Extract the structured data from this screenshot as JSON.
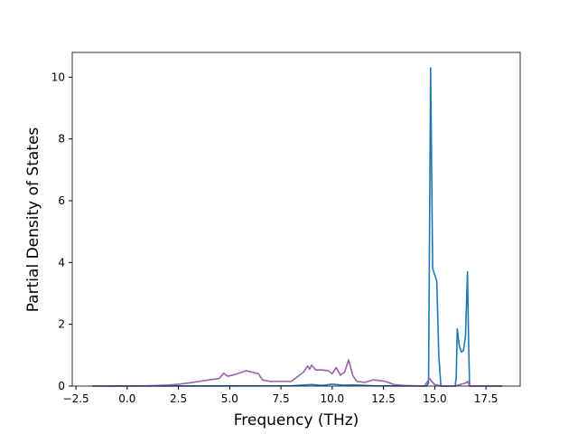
{
  "chart_data": {
    "type": "line",
    "xlabel": "Frequency (THz)",
    "ylabel": "Partial Density of States",
    "xlim": [
      -2.68,
      19.17
    ],
    "ylim": [
      0,
      10.8
    ],
    "xticks": [
      {
        "value": -2.5,
        "label": "−2.5"
      },
      {
        "value": 0,
        "label": "0.0"
      },
      2.5,
      {
        "value": 5,
        "label": "5.0"
      },
      7.5,
      {
        "value": 10,
        "label": "10.0"
      },
      12.5,
      {
        "value": 15,
        "label": "15.0"
      },
      17.5
    ],
    "yticks": [
      0,
      2,
      4,
      6,
      8,
      10
    ],
    "series": [
      {
        "color": "#1f77b4",
        "x": [
          -1.7,
          8,
          9,
          9.5,
          10,
          10.5,
          11,
          12,
          14.6,
          14.7,
          14.8,
          14.9,
          15.0,
          15.1,
          15.2,
          15.3,
          15.31,
          16.0,
          16.05,
          16.1,
          16.2,
          16.3,
          16.4,
          16.5,
          16.6,
          16.65,
          16.7,
          18.3
        ],
        "values": [
          0,
          0.01,
          0.05,
          0.02,
          0.06,
          0.03,
          0.04,
          0.01,
          0,
          0.1,
          10.3,
          3.8,
          3.6,
          3.4,
          1.0,
          0,
          0,
          0,
          0.3,
          1.85,
          1.3,
          1.1,
          1.15,
          1.6,
          3.7,
          1.5,
          0,
          0
        ]
      },
      {
        "color": "#9c5fb0",
        "x": [
          -1.7,
          0,
          1,
          2,
          2.5,
          3,
          3.5,
          4,
          4.5,
          4.7,
          4.9,
          5.1,
          5.3,
          5.6,
          5.8,
          6.1,
          6.4,
          6.6,
          7,
          7.5,
          8,
          8.3,
          8.6,
          8.8,
          8.9,
          9.0,
          9.2,
          9.5,
          9.8,
          10.0,
          10.2,
          10.4,
          10.6,
          10.8,
          11.0,
          11.2,
          11.6,
          12.0,
          12.3,
          12.6,
          13.0,
          13.5,
          14.5,
          14.75,
          14.85,
          15.0,
          15.3,
          16.0,
          16.5,
          16.6,
          16.7,
          17.0,
          18.3
        ],
        "values": [
          0,
          0,
          0.01,
          0.03,
          0.06,
          0.1,
          0.15,
          0.2,
          0.25,
          0.42,
          0.32,
          0.35,
          0.38,
          0.45,
          0.5,
          0.45,
          0.4,
          0.2,
          0.15,
          0.15,
          0.15,
          0.3,
          0.45,
          0.65,
          0.55,
          0.68,
          0.52,
          0.52,
          0.5,
          0.4,
          0.6,
          0.35,
          0.45,
          0.85,
          0.35,
          0.15,
          0.12,
          0.2,
          0.18,
          0.15,
          0.05,
          0.02,
          0,
          0.25,
          0.15,
          0.05,
          0,
          0,
          0.1,
          0.15,
          0,
          0,
          0
        ]
      }
    ]
  }
}
